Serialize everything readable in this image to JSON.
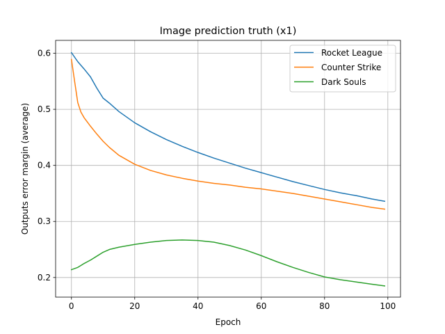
{
  "chart_data": {
    "type": "line",
    "title": "Image prediction truth (x1)",
    "xlabel": "Epoch",
    "ylabel": "Outputs error margin (average)",
    "xlim": [
      -5,
      104
    ],
    "ylim": [
      0.165,
      0.623
    ],
    "xticks": [
      0,
      20,
      40,
      60,
      80,
      100
    ],
    "yticks": [
      0.2,
      0.3,
      0.4,
      0.5,
      0.6
    ],
    "grid": true,
    "legend_position": "top-right",
    "series": [
      {
        "name": "Rocket League",
        "color": "#1f77b4",
        "x": [
          0,
          2,
          4,
          6,
          8,
          10,
          12,
          15,
          20,
          25,
          30,
          35,
          40,
          45,
          50,
          55,
          60,
          65,
          70,
          75,
          80,
          85,
          90,
          95,
          99
        ],
        "y": [
          0.601,
          0.585,
          0.572,
          0.558,
          0.538,
          0.52,
          0.511,
          0.496,
          0.476,
          0.46,
          0.446,
          0.434,
          0.423,
          0.413,
          0.404,
          0.395,
          0.387,
          0.379,
          0.371,
          0.364,
          0.357,
          0.351,
          0.346,
          0.34,
          0.336
        ]
      },
      {
        "name": "Counter Strike",
        "color": "#ff7f0e",
        "x": [
          0,
          1,
          2,
          3,
          4,
          6,
          8,
          10,
          12,
          15,
          20,
          25,
          30,
          35,
          40,
          45,
          50,
          55,
          60,
          65,
          70,
          75,
          80,
          85,
          90,
          95,
          99
        ],
        "y": [
          0.589,
          0.55,
          0.512,
          0.495,
          0.485,
          0.47,
          0.456,
          0.443,
          0.432,
          0.418,
          0.402,
          0.391,
          0.383,
          0.377,
          0.372,
          0.368,
          0.365,
          0.361,
          0.358,
          0.354,
          0.35,
          0.345,
          0.34,
          0.335,
          0.33,
          0.325,
          0.322
        ]
      },
      {
        "name": "Dark Souls",
        "color": "#2ca02c",
        "x": [
          0,
          2,
          4,
          6,
          8,
          10,
          12,
          15,
          20,
          25,
          30,
          35,
          40,
          45,
          50,
          55,
          60,
          65,
          70,
          75,
          80,
          85,
          90,
          95,
          99
        ],
        "y": [
          0.214,
          0.218,
          0.225,
          0.231,
          0.238,
          0.245,
          0.25,
          0.254,
          0.259,
          0.263,
          0.266,
          0.267,
          0.266,
          0.263,
          0.257,
          0.249,
          0.239,
          0.228,
          0.218,
          0.209,
          0.201,
          0.196,
          0.192,
          0.188,
          0.185
        ]
      }
    ]
  }
}
